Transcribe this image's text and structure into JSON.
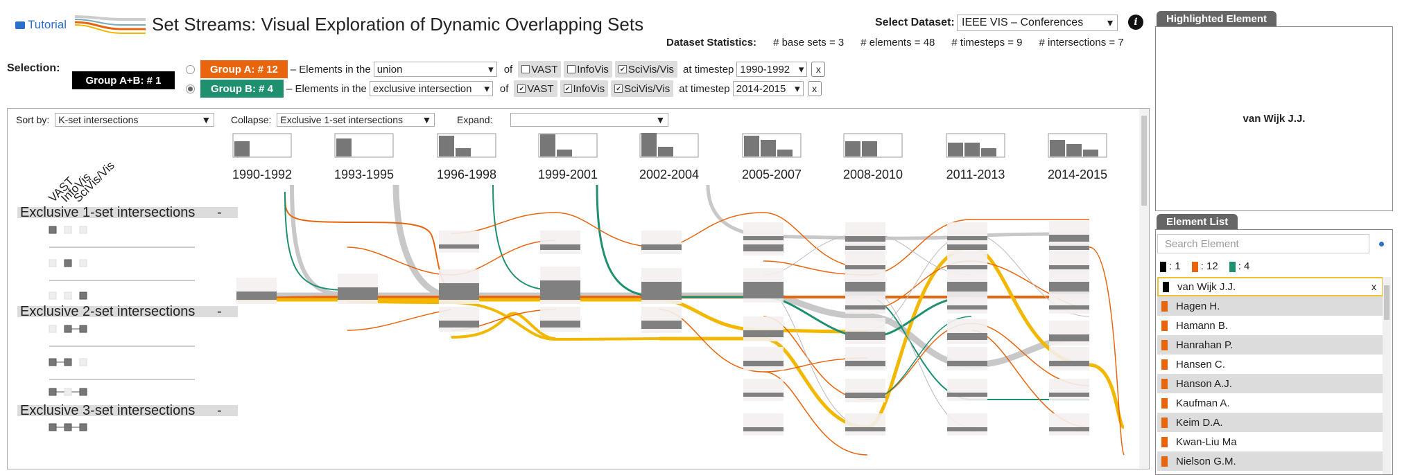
{
  "header": {
    "tutorial_label": "Tutorial",
    "title": "Set Streams: Visual Exploration of Dynamic Overlapping Sets",
    "dataset_label": "Select Dataset:",
    "dataset_value": "IEEE VIS – Conferences",
    "stats_label": "Dataset Statistics:",
    "stats": [
      "# base sets = 3",
      "# elements = 48",
      "# timesteps = 9",
      "# intersections = 7"
    ]
  },
  "selection": {
    "label": "Selection:",
    "group_ab": "Group A+B: # 1",
    "rows": [
      {
        "group": "Group A: # 12",
        "color": "#e8650e",
        "prefix": "– Elements in the",
        "mode": "union",
        "of": "of",
        "sets": [
          {
            "name": "VAST",
            "checked": false
          },
          {
            "name": "InfoVis",
            "checked": false
          },
          {
            "name": "SciVis/Vis",
            "checked": true
          }
        ],
        "at": "at timestep",
        "timestep": "1990-1992",
        "close": "x",
        "selected": false
      },
      {
        "group": "Group B: # 4",
        "color": "#1e9070",
        "prefix": "– Elements in the",
        "mode": "exclusive intersection",
        "of": "of",
        "sets": [
          {
            "name": "VAST",
            "checked": true
          },
          {
            "name": "InfoVis",
            "checked": true
          },
          {
            "name": "SciVis/Vis",
            "checked": true
          }
        ],
        "at": "at timestep",
        "timestep": "2014-2015",
        "close": "x",
        "selected": true
      }
    ]
  },
  "controls": {
    "sort_label": "Sort by:",
    "sort_value": "K-set intersections",
    "collapse_label": "Collapse:",
    "collapse_value": "Exclusive 1-set intersections",
    "expand_label": "Expand:",
    "expand_value": ""
  },
  "set_labels": [
    "VAST",
    "InfoVis",
    "SciVis/Vis"
  ],
  "sections": [
    {
      "title": "Exclusive 1-set intersections",
      "toggle": "-"
    },
    {
      "title": "Exclusive 2-set intersections",
      "toggle": "-"
    },
    {
      "title": "Exclusive 3-set intersections",
      "toggle": "-"
    }
  ],
  "timesteps": [
    "1990-1992",
    "1993-1995",
    "1996-1998",
    "1999-2001",
    "2002-2004",
    "2005-2007",
    "2008-2010",
    "2011-2013",
    "2014-2015"
  ],
  "highlighted": {
    "tab": "Highlighted Element",
    "name": "van Wijk J.J."
  },
  "element_list": {
    "tab": "Element List",
    "search_placeholder": "Search Element",
    "legend": [
      {
        "color": "#000000",
        "label": ": 1"
      },
      {
        "color": "#e8650e",
        "label": ": 12"
      },
      {
        "color": "#1e9070",
        "label": ": 4"
      }
    ],
    "items": [
      {
        "name": "van Wijk J.J.",
        "color": "#000000",
        "remove": "x"
      },
      {
        "name": "Hagen H.",
        "color": "#e8650e"
      },
      {
        "name": "Hamann B.",
        "color": "#e8650e"
      },
      {
        "name": "Hanrahan P.",
        "color": "#e8650e"
      },
      {
        "name": "Hansen C.",
        "color": "#e8650e"
      },
      {
        "name": "Hanson A.J.",
        "color": "#e8650e"
      },
      {
        "name": "Kaufman A.",
        "color": "#e8650e"
      },
      {
        "name": "Keim D.A.",
        "color": "#e8650e"
      },
      {
        "name": "Kwan-Liu Ma",
        "color": "#e8650e"
      },
      {
        "name": "Nielson G.M.",
        "color": "#e8650e"
      }
    ]
  },
  "colors": {
    "groupA": "#e8650e",
    "groupB": "#1e9070",
    "highlight": "#f2b800",
    "node": "#808080",
    "stream": "#c8c8c8"
  }
}
